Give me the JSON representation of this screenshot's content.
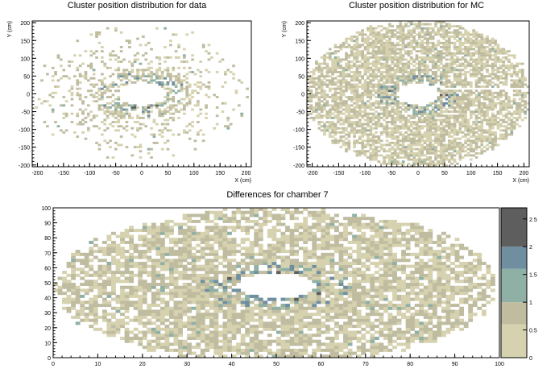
{
  "palette": [
    "#d6d2b0",
    "#bfbca0",
    "#8fb0a4",
    "#6f8ea0",
    "#5e5e5e"
  ],
  "chart_data": [
    {
      "type": "heatmap",
      "title": "Cluster position distribution for data",
      "xlabel": "X (cm)",
      "ylabel": "Y (cm)",
      "xlim": [
        -210,
        210
      ],
      "ylim": [
        -205,
        205
      ],
      "xticks": [
        -200,
        -150,
        -100,
        -50,
        0,
        50,
        100,
        150,
        200
      ],
      "yticks": [
        -200,
        -150,
        -100,
        -50,
        0,
        50,
        100,
        150,
        200
      ],
      "distribution": {
        "outer_rx": 205,
        "outer_ry": 190,
        "hole_rx": 45,
        "hole_ry": 33,
        "hole_center": [
          0,
          0
        ],
        "occupancy": "sparse",
        "ring_emphasis": "blue-grey cells concentrated around the hole"
      }
    },
    {
      "type": "heatmap",
      "title": "Cluster position distribution for MC",
      "xlabel": "X (cm)",
      "ylabel": "Y (cm)",
      "xlim": [
        -210,
        210
      ],
      "ylim": [
        -205,
        205
      ],
      "xticks": [
        -200,
        -150,
        -100,
        -50,
        0,
        50,
        100,
        150,
        200
      ],
      "yticks": [
        -200,
        -150,
        -100,
        -50,
        0,
        50,
        100,
        150,
        200
      ],
      "distribution": {
        "outer_rx": 205,
        "outer_ry": 200,
        "hole_rx": 40,
        "hole_ry": 30,
        "hole_center": [
          0,
          0
        ],
        "occupancy": "dense",
        "empty_strip": {
          "x": [
            40,
            210
          ],
          "y": [
            10,
            20
          ]
        }
      }
    },
    {
      "type": "heatmap",
      "title": "Differences for chamber 7",
      "xlabel": "",
      "ylabel": "",
      "xlim": [
        0,
        100
      ],
      "ylim": [
        0,
        100
      ],
      "xticks": [
        0,
        10,
        20,
        30,
        40,
        50,
        60,
        70,
        80,
        90,
        100
      ],
      "yticks": [
        0,
        10,
        20,
        30,
        40,
        50,
        60,
        70,
        80,
        90,
        100
      ],
      "zlim": [
        0,
        2.7
      ],
      "colorbar_ticks": [
        "0",
        "0.5",
        "1",
        "1.5",
        "2",
        "2.5"
      ],
      "distribution": {
        "outer_rx": 48,
        "outer_ry": 50,
        "hole_rx": 9,
        "hole_ry": 8,
        "hole_center": [
          50,
          48
        ],
        "occupancy": "dense"
      }
    }
  ]
}
